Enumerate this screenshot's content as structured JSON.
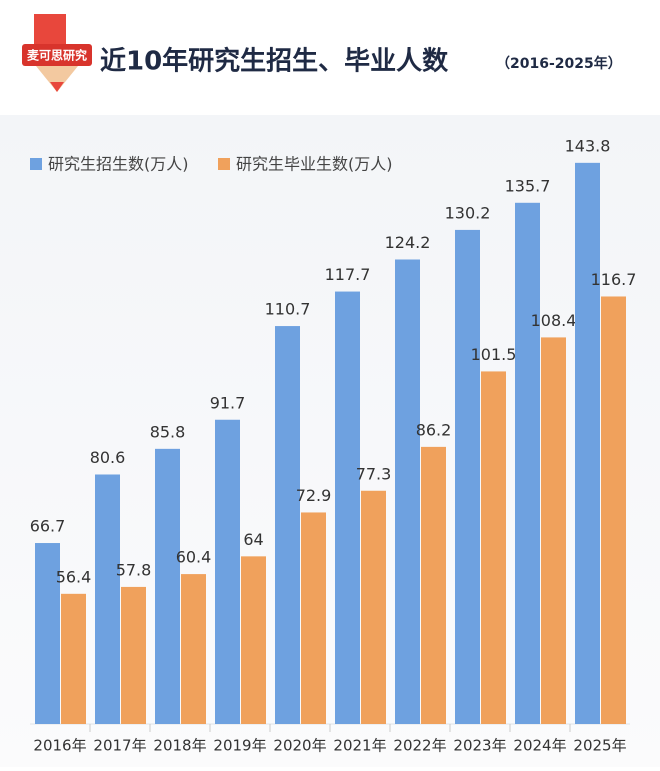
{
  "header": {
    "brand": "麦可思研究",
    "title": "近10年研究生招生、毕业人数",
    "subtitle": "（2016-2025年）"
  },
  "chart_data": {
    "type": "bar",
    "categories": [
      "2016年",
      "2017年",
      "2018年",
      "2019年",
      "2020年",
      "2021年",
      "2022年",
      "2023年",
      "2024年",
      "2025年"
    ],
    "series": [
      {
        "name": "研究生招生数(万人)",
        "color": "#6ea1e0",
        "values": [
          66.7,
          80.6,
          85.8,
          91.7,
          110.7,
          117.7,
          124.2,
          130.2,
          135.7,
          143.8
        ]
      },
      {
        "name": "研究生毕业生数(万人)",
        "color": "#f0a15c",
        "values": [
          56.4,
          57.8,
          60.4,
          64,
          72.9,
          77.3,
          86.2,
          101.5,
          108.4,
          116.7
        ]
      }
    ],
    "ylim": [
      30,
      146
    ],
    "legend": "top-left"
  }
}
